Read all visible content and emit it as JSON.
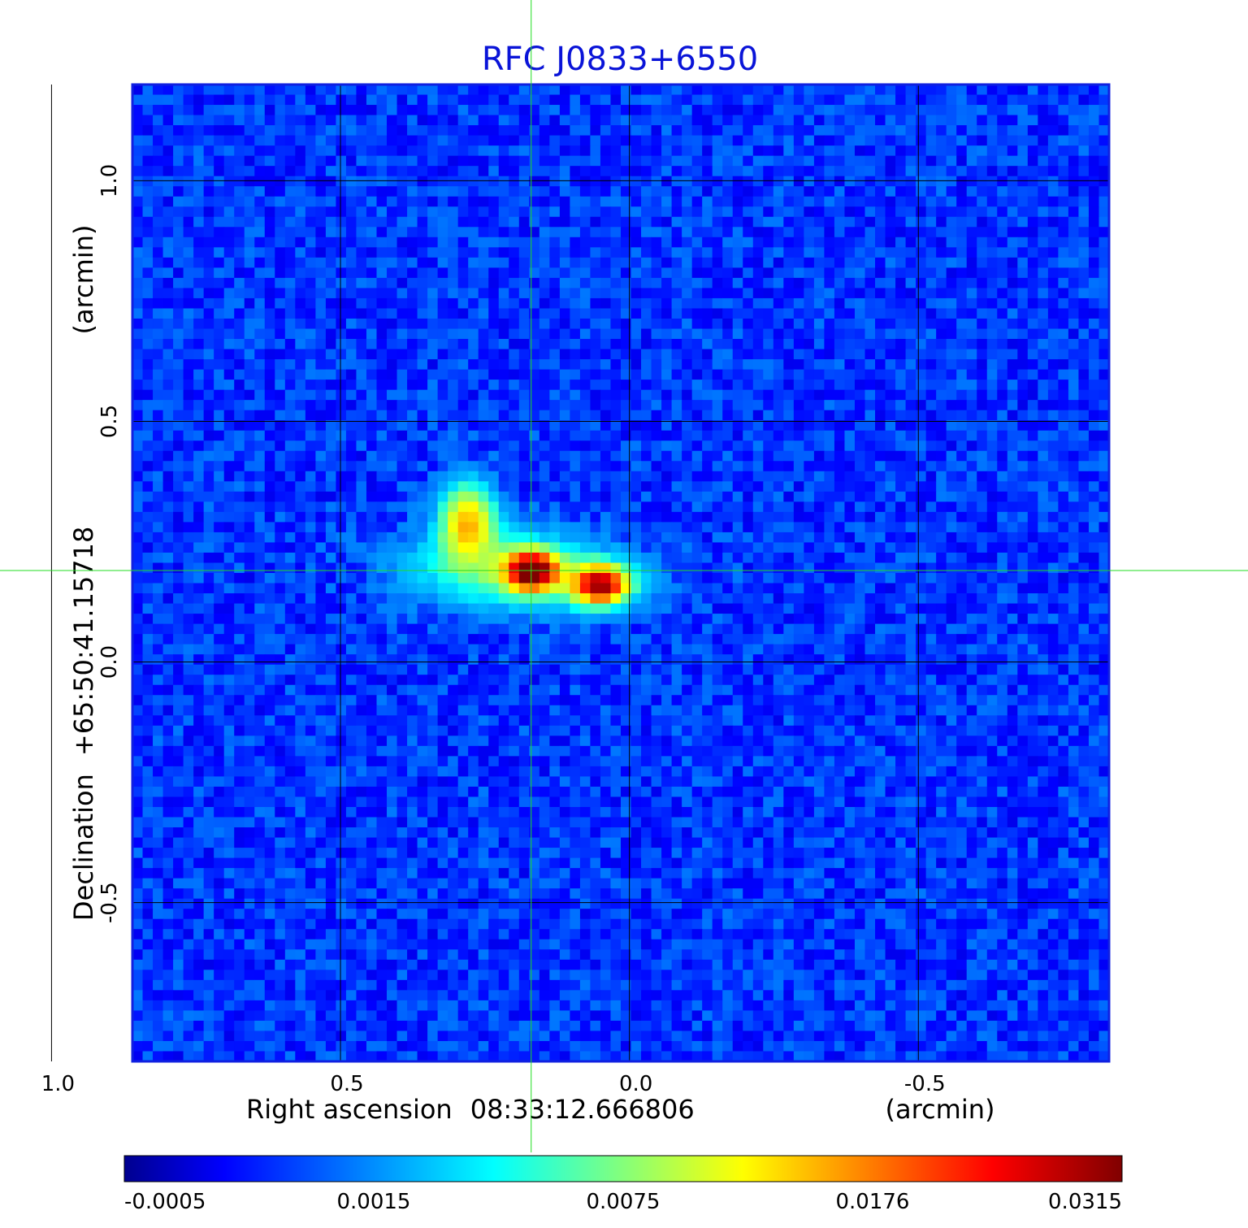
{
  "chart_data": {
    "type": "heatmap",
    "title": "RFC J0833+6550",
    "x_axis": {
      "label": "Right ascension",
      "center_value": "08:33:12.666806",
      "unit_label": "(arcmin)",
      "range": [
        0.86,
        -0.83
      ],
      "ticks": [
        1.0,
        0.5,
        0.0,
        -0.5
      ],
      "tick_labels": [
        "1.0",
        "0.5",
        "0.0",
        "-0.5"
      ]
    },
    "y_axis": {
      "label": "Declination",
      "center_value": "+65:50:41.15718",
      "unit_label": "(arcmin)",
      "range": [
        -0.83,
        1.2
      ],
      "ticks": [
        1.0,
        0.5,
        0.0,
        -0.5
      ],
      "tick_labels": [
        "1.0",
        "0.5",
        "0.0",
        "-0.5"
      ]
    },
    "grid": true,
    "crosshair": {
      "x": 0.17,
      "y": 0.19,
      "color": "#22dd22"
    },
    "colorscale": {
      "name": "jet",
      "stops": [
        "#00008f",
        "#0000ff",
        "#00ffff",
        "#ffff00",
        "#ff0000",
        "#800000"
      ],
      "tick_values": [
        -0.0005,
        0.0015,
        0.0075,
        0.0176,
        0.0315
      ],
      "tick_labels": [
        "-0.0005",
        "0.0015",
        "0.0075",
        "0.0176",
        "0.0315"
      ],
      "range": [
        -0.0005,
        0.0315
      ]
    },
    "sources": [
      {
        "x": 0.28,
        "y": 0.29,
        "peak": 0.014,
        "sx": 0.03,
        "sy": 0.05
      },
      {
        "x": 0.17,
        "y": 0.19,
        "peak": 0.0315,
        "sx": 0.028,
        "sy": 0.025
      },
      {
        "x": 0.05,
        "y": 0.16,
        "peak": 0.027,
        "sx": 0.03,
        "sy": 0.025
      },
      {
        "x": 0.23,
        "y": 0.2,
        "peak": 0.0055,
        "sx": 0.1,
        "sy": 0.05
      },
      {
        "x": 0.11,
        "y": 0.17,
        "peak": 0.004,
        "sx": 0.09,
        "sy": 0.04
      }
    ],
    "background_level": 0.0009
  }
}
